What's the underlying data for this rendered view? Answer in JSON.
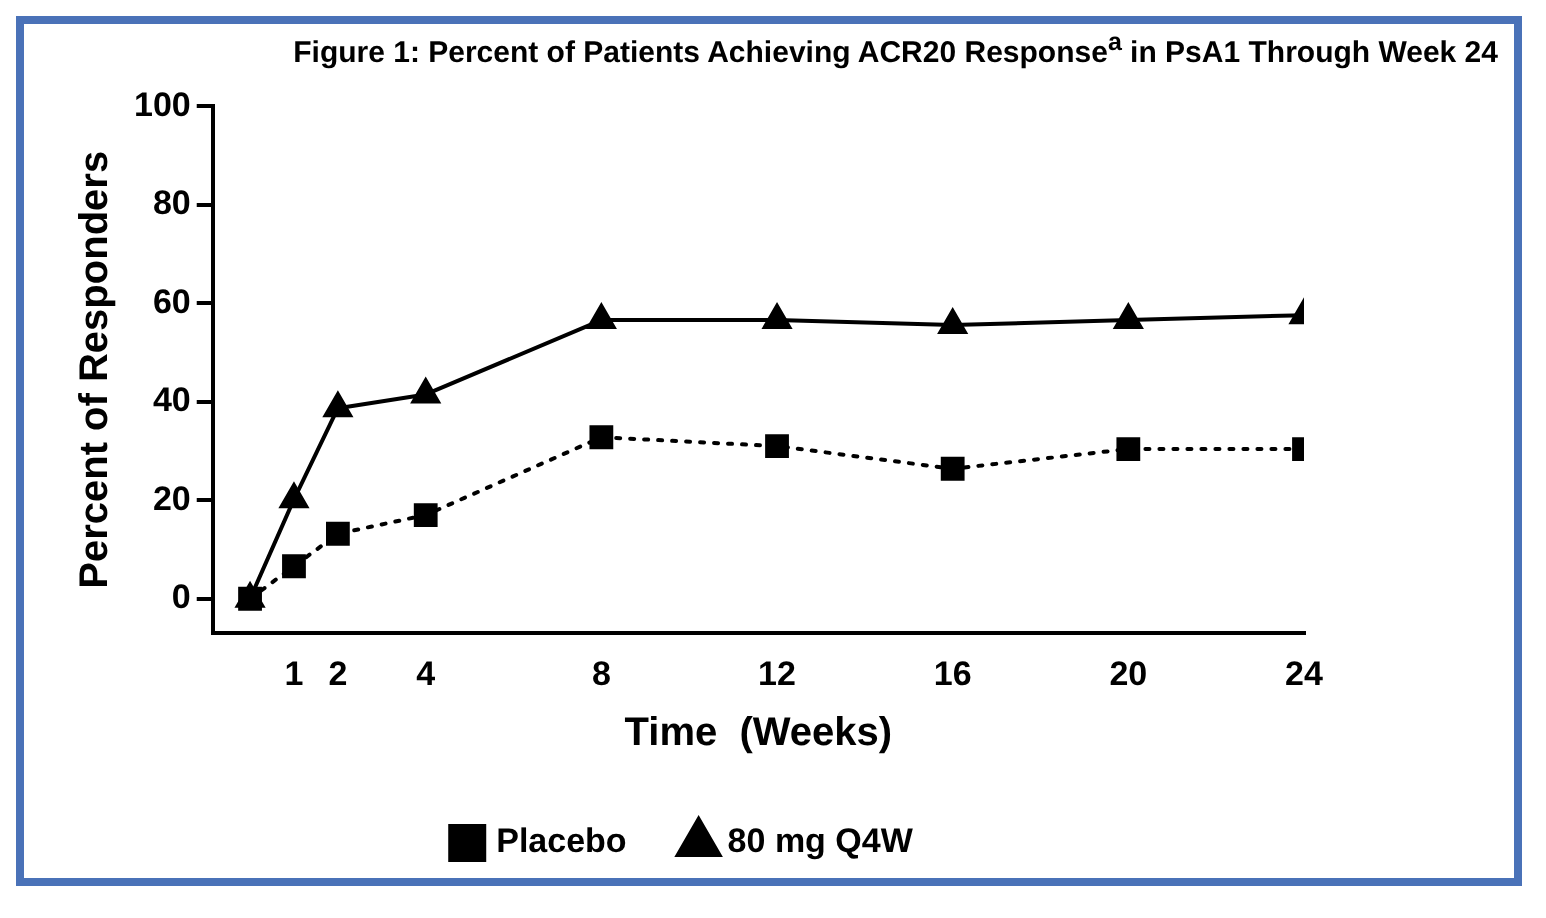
{
  "chart_data": {
    "type": "line",
    "title": "Figure 1: Percent of Patients Achieving ACR20 Response$^{a}$ in PsA1 Through Week 24",
    "xlabel": "Time  (Weeks)",
    "ylabel": "Percent of Responders",
    "x": [
      0,
      1,
      2,
      4,
      8,
      12,
      16,
      20,
      24
    ],
    "series": [
      {
        "name": "Placebo",
        "color": "#000000",
        "marker": "square",
        "line_style": "dotted",
        "values": [
          0,
          6.6,
          13.2,
          17,
          32.8,
          31,
          26.4,
          30.4,
          30.4
        ]
      },
      {
        "name": "80 mg Q4W",
        "color": "#000000",
        "marker": "triangle",
        "line_style": "solid",
        "values": [
          0,
          20.2,
          38.7,
          41.5,
          56.6,
          56.6,
          55.6,
          56.6,
          57.6
        ]
      }
    ],
    "xlim": [
      -0.85,
      24
    ],
    "xticks": [
      1,
      2,
      4,
      8,
      12,
      16,
      20,
      24
    ],
    "ylim": [
      -7,
      100
    ],
    "yticks": [
      0,
      20,
      40,
      60,
      80,
      100
    ],
    "grid": false,
    "legend": "bottom"
  }
}
